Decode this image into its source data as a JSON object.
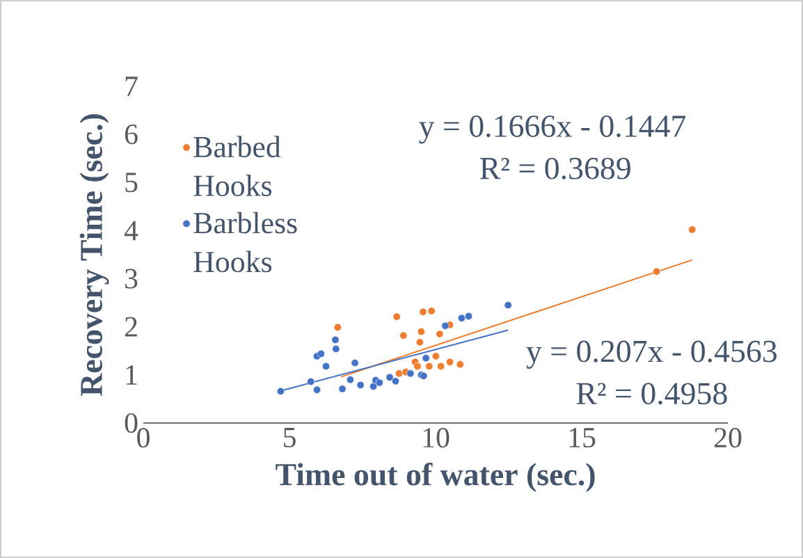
{
  "chart_data": {
    "type": "scatter",
    "xlabel": "Time out of water (sec.)",
    "ylabel": "Recovery Time (sec.)",
    "xlim": [
      0,
      20
    ],
    "ylim": [
      0,
      7
    ],
    "xticks": [
      0,
      5,
      10,
      15,
      20
    ],
    "yticks": [
      0,
      1,
      2,
      3,
      4,
      5,
      6,
      7
    ],
    "grid": false,
    "legend": "top left",
    "marker": "circle",
    "series": [
      {
        "name": "Barbed Hooks",
        "color": "#ed7d31",
        "x": [
          6.65,
          8.67,
          9.57,
          9.86,
          8.9,
          9.51,
          9.46,
          10.14,
          10.49,
          9.3,
          10.01,
          10.18,
          10.49,
          10.84,
          9.78,
          8.75,
          8.98,
          9.38,
          17.56,
          18.78
        ],
        "values": [
          1.99,
          2.21,
          2.31,
          2.33,
          1.82,
          1.9,
          1.68,
          1.85,
          2.04,
          1.27,
          1.39,
          1.18,
          1.27,
          1.22,
          1.18,
          1.03,
          1.06,
          1.18,
          3.15,
          4.02
        ]
      },
      {
        "name": "Barbless Hooks",
        "color": "#4472c4",
        "x": [
          4.7,
          5.73,
          5.94,
          5.94,
          6.08,
          6.25,
          6.57,
          6.59,
          7.24,
          7.08,
          6.81,
          7.43,
          7.87,
          7.95,
          8.08,
          8.43,
          8.63,
          9.14,
          9.51,
          9.59,
          9.67,
          10.33,
          10.89,
          11.13,
          12.48
        ],
        "values": [
          0.66,
          0.86,
          0.69,
          1.39,
          1.44,
          1.18,
          1.73,
          1.54,
          1.25,
          0.9,
          0.71,
          0.79,
          0.76,
          0.89,
          0.84,
          0.95,
          0.87,
          1.03,
          1.0,
          0.98,
          1.35,
          2.02,
          2.18,
          2.22,
          2.45
        ]
      },
      {
        "color": "#ed7d31",
        "type": "line",
        "marker": "none",
        "x": [
          6.76,
          18.78
        ],
        "values": [
          0.96,
          3.39
        ]
      },
      {
        "color": "#4472c4",
        "type": "line",
        "marker": "none",
        "x": [
          4.7,
          12.48
        ],
        "values": [
          0.67,
          1.93
        ]
      }
    ],
    "annotations": [
      "y = 0.1666x - 0.1447",
      "R² = 0.3689",
      "y = 0.207x - 0.4563",
      "R² = 0.4958"
    ]
  }
}
